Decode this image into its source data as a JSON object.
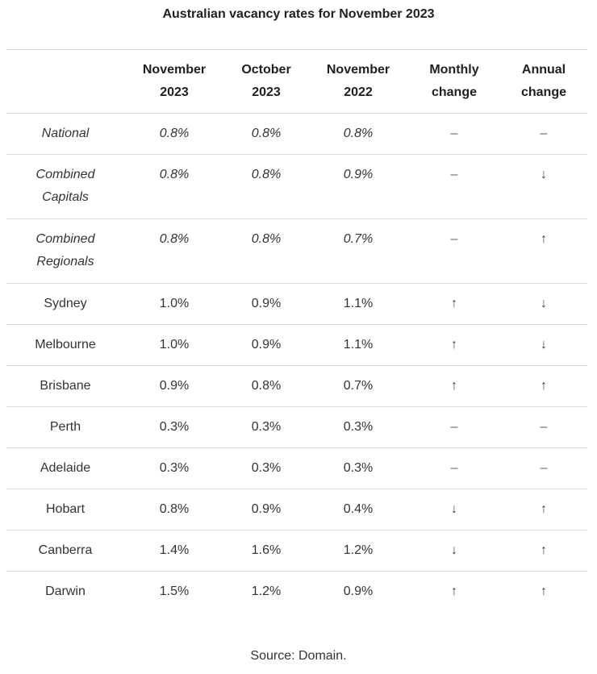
{
  "title": "Australian vacancy rates for November 2023",
  "source": "Source: Domain.",
  "chart_data": {
    "type": "table",
    "title": "Australian vacancy rates for November 2023",
    "columns": [
      {
        "line1": "",
        "line2": ""
      },
      {
        "line1": "November",
        "line2": "2023"
      },
      {
        "line1": "October",
        "line2": "2023"
      },
      {
        "line1": "November",
        "line2": "2022"
      },
      {
        "line1": "Monthly",
        "line2": "change"
      },
      {
        "line1": "Annual",
        "line2": "change"
      }
    ],
    "rows": [
      {
        "region": [
          "National"
        ],
        "nov2023": "0.8%",
        "oct2023": "0.8%",
        "nov2022": "0.8%",
        "monthly": "–",
        "annual": "–",
        "italic": true
      },
      {
        "region": [
          "Combined",
          "Capitals"
        ],
        "nov2023": "0.8%",
        "oct2023": "0.8%",
        "nov2022": "0.9%",
        "monthly": "–",
        "annual": "↓",
        "italic": true
      },
      {
        "region": [
          "Combined",
          "Regionals"
        ],
        "nov2023": "0.8%",
        "oct2023": "0.8%",
        "nov2022": "0.7%",
        "monthly": "–",
        "annual": "↑",
        "italic": true
      },
      {
        "region": [
          "Sydney"
        ],
        "nov2023": "1.0%",
        "oct2023": "0.9%",
        "nov2022": "1.1%",
        "monthly": "↑",
        "annual": "↓",
        "italic": false
      },
      {
        "region": [
          "Melbourne"
        ],
        "nov2023": "1.0%",
        "oct2023": "0.9%",
        "nov2022": "1.1%",
        "monthly": "↑",
        "annual": "↓",
        "italic": false
      },
      {
        "region": [
          "Brisbane"
        ],
        "nov2023": "0.9%",
        "oct2023": "0.8%",
        "nov2022": "0.7%",
        "monthly": "↑",
        "annual": "↑",
        "italic": false
      },
      {
        "region": [
          "Perth"
        ],
        "nov2023": "0.3%",
        "oct2023": "0.3%",
        "nov2022": "0.3%",
        "monthly": "–",
        "annual": "–",
        "italic": false
      },
      {
        "region": [
          "Adelaide"
        ],
        "nov2023": "0.3%",
        "oct2023": "0.3%",
        "nov2022": "0.3%",
        "monthly": "–",
        "annual": "–",
        "italic": false
      },
      {
        "region": [
          "Hobart"
        ],
        "nov2023": "0.8%",
        "oct2023": "0.9%",
        "nov2022": "0.4%",
        "monthly": "↓",
        "annual": "↑",
        "italic": false
      },
      {
        "region": [
          "Canberra"
        ],
        "nov2023": "1.4%",
        "oct2023": "1.6%",
        "nov2022": "1.2%",
        "monthly": "↓",
        "annual": "↑",
        "italic": false
      },
      {
        "region": [
          "Darwin"
        ],
        "nov2023": "1.5%",
        "oct2023": "1.2%",
        "nov2022": "0.9%",
        "monthly": "↑",
        "annual": "↑",
        "italic": false
      }
    ]
  }
}
